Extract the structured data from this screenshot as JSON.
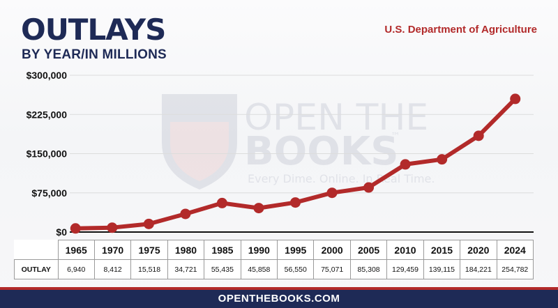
{
  "header": {
    "title": "OUTLAYS",
    "subtitle": "BY YEAR/IN MILLIONS",
    "agency": "U.S. Department of Agriculture"
  },
  "watermark": {
    "line1": "OPEN THE",
    "line2": "BOOKS",
    "trademark": "™",
    "tagline": "Every Dime. Online. In Real Time."
  },
  "footer": {
    "site": "OPENTHEBOOKS.COM"
  },
  "table": {
    "row_label": "OUTLAY"
  },
  "colors": {
    "line": "#b22a2a",
    "navy": "#1e2a56",
    "grid": "#dcdcdc"
  },
  "chart_data": {
    "type": "line",
    "categories": [
      "1965",
      "1970",
      "1975",
      "1980",
      "1985",
      "1990",
      "1995",
      "2000",
      "2005",
      "2010",
      "2015",
      "2020",
      "2024"
    ],
    "values": [
      6940,
      8412,
      15518,
      34721,
      55435,
      45858,
      56550,
      75071,
      85308,
      129459,
      139115,
      184221,
      254782
    ],
    "value_labels": [
      "6,940",
      "8,412",
      "15,518",
      "34,721",
      "55,435",
      "45,858",
      "56,550",
      "75,071",
      "85,308",
      "129,459",
      "139,115",
      "184,221",
      "254,782"
    ],
    "yticks": [
      0,
      75000,
      150000,
      225000,
      300000
    ],
    "ytick_labels": [
      "$0",
      "$75,000",
      "$150,000",
      "$225,000",
      "$300,000"
    ],
    "ylim": [
      0,
      300000
    ],
    "grid": true,
    "title": "OUTLAYS",
    "subtitle": "BY YEAR/IN MILLIONS"
  }
}
